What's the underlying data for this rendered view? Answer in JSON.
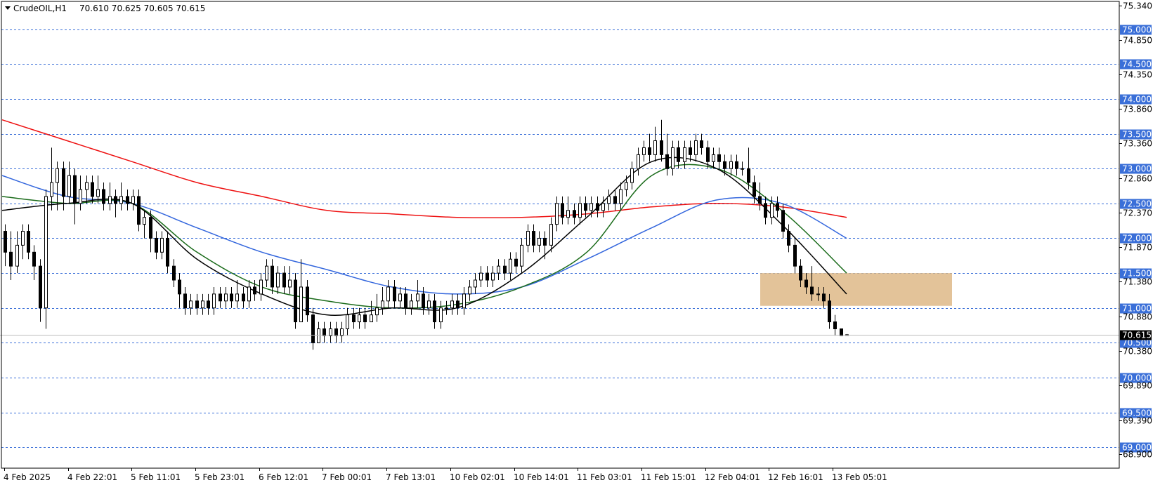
{
  "header": {
    "symbol": "CrudeOIL,H1",
    "ohlc": "70.610 70.625 70.605 70.615",
    "menu_icon": "triangle-down-icon"
  },
  "colors": {
    "background": "#ffffff",
    "grid": "#3a6fd8",
    "price_box": "#3a6fd8",
    "current_box": "#000000",
    "candle_outline": "#000000",
    "bull_body": "#ffffff",
    "bear_body": "#000000",
    "zone_fill": "#deb887"
  },
  "chart_data": {
    "type": "candlestick",
    "symbol": "CrudeOIL",
    "timeframe": "H1",
    "ylim": [
      68.7,
      75.4
    ],
    "price_axis_ticks": [
      "75.340",
      "74.850",
      "74.350",
      "73.860",
      "73.360",
      "72.860",
      "72.370",
      "71.870",
      "71.380",
      "70.880",
      "70.380",
      "69.890",
      "69.390",
      "68.900"
    ],
    "level_labels": [
      "75.000",
      "74.500",
      "74.000",
      "73.500",
      "73.000",
      "72.500",
      "72.000",
      "71.500",
      "71.000",
      "70.500",
      "70.000",
      "69.500",
      "69.000"
    ],
    "current_price": "70.615",
    "time_labels": [
      "4 Feb 2025",
      "4 Feb 22:01",
      "5 Feb 11:01",
      "5 Feb 23:01",
      "6 Feb 12:01",
      "7 Feb 00:01",
      "7 Feb 13:01",
      "10 Feb 02:01",
      "10 Feb 14:01",
      "11 Feb 03:01",
      "11 Feb 15:01",
      "12 Feb 04:01",
      "12 Feb 16:01",
      "13 Feb 05:01"
    ],
    "candles": [
      [
        72.1,
        71.8,
        72.2,
        71.6
      ],
      [
        71.8,
        71.6,
        72.1,
        71.4
      ],
      [
        71.6,
        71.9,
        72.1,
        71.5
      ],
      [
        71.9,
        72.1,
        72.2,
        71.7
      ],
      [
        72.1,
        71.8,
        72.2,
        71.7
      ],
      [
        71.8,
        71.6,
        71.9,
        71.4
      ],
      [
        71.6,
        71.0,
        71.7,
        70.8
      ],
      [
        71.0,
        72.6,
        72.7,
        70.7
      ],
      [
        72.6,
        72.8,
        73.3,
        72.4
      ],
      [
        72.8,
        73.0,
        73.1,
        72.4
      ],
      [
        73.0,
        72.6,
        73.1,
        72.4
      ],
      [
        72.6,
        72.9,
        73.1,
        72.5
      ],
      [
        72.9,
        72.5,
        73.0,
        72.2
      ],
      [
        72.5,
        72.7,
        72.9,
        72.4
      ],
      [
        72.7,
        72.8,
        72.9,
        72.5
      ],
      [
        72.8,
        72.6,
        72.9,
        72.5
      ],
      [
        72.6,
        72.7,
        72.9,
        72.5
      ],
      [
        72.7,
        72.5,
        72.8,
        72.4
      ],
      [
        72.5,
        72.6,
        72.8,
        72.4
      ],
      [
        72.6,
        72.5,
        72.7,
        72.3
      ],
      [
        72.5,
        72.6,
        72.8,
        72.4
      ],
      [
        72.6,
        72.5,
        72.7,
        72.4
      ],
      [
        72.5,
        72.6,
        72.7,
        72.4
      ],
      [
        72.6,
        72.2,
        72.7,
        72.1
      ],
      [
        72.2,
        72.3,
        72.4,
        72.0
      ],
      [
        72.3,
        72.0,
        72.4,
        71.8
      ],
      [
        72.0,
        71.8,
        72.1,
        71.7
      ],
      [
        71.8,
        72.0,
        72.1,
        71.7
      ],
      [
        72.0,
        71.6,
        72.1,
        71.5
      ],
      [
        71.6,
        71.4,
        71.7,
        71.3
      ],
      [
        71.4,
        71.2,
        71.5,
        71.0
      ],
      [
        71.2,
        71.0,
        71.3,
        70.9
      ],
      [
        71.0,
        71.1,
        71.2,
        70.9
      ],
      [
        71.1,
        71.0,
        71.2,
        70.9
      ],
      [
        71.0,
        71.1,
        71.2,
        70.9
      ],
      [
        71.1,
        71.0,
        71.2,
        70.9
      ],
      [
        71.0,
        71.2,
        71.3,
        70.9
      ],
      [
        71.2,
        71.1,
        71.3,
        71.0
      ],
      [
        71.1,
        71.2,
        71.3,
        71.0
      ],
      [
        71.2,
        71.1,
        71.3,
        71.0
      ],
      [
        71.1,
        71.2,
        71.4,
        71.0
      ],
      [
        71.2,
        71.1,
        71.3,
        71.0
      ],
      [
        71.1,
        71.3,
        71.4,
        71.0
      ],
      [
        71.3,
        71.2,
        71.4,
        71.1
      ],
      [
        71.2,
        71.4,
        71.5,
        71.1
      ],
      [
        71.4,
        71.6,
        71.7,
        71.3
      ],
      [
        71.6,
        71.3,
        71.7,
        71.2
      ],
      [
        71.3,
        71.5,
        71.6,
        71.2
      ],
      [
        71.5,
        71.3,
        71.6,
        71.2
      ],
      [
        71.3,
        71.4,
        71.6,
        71.2
      ],
      [
        71.4,
        70.8,
        71.5,
        70.7
      ],
      [
        70.8,
        71.3,
        71.7,
        70.8
      ],
      [
        71.3,
        70.9,
        71.4,
        70.8
      ],
      [
        70.9,
        70.5,
        71.0,
        70.4
      ],
      [
        70.5,
        70.7,
        70.8,
        70.5
      ],
      [
        70.7,
        70.6,
        70.8,
        70.5
      ],
      [
        70.6,
        70.7,
        70.8,
        70.5
      ],
      [
        70.7,
        70.6,
        70.8,
        70.5
      ],
      [
        70.6,
        70.7,
        70.8,
        70.5
      ],
      [
        70.7,
        70.9,
        71.0,
        70.6
      ],
      [
        70.9,
        70.8,
        71.0,
        70.7
      ],
      [
        70.8,
        70.9,
        71.0,
        70.7
      ],
      [
        70.9,
        70.8,
        71.0,
        70.7
      ],
      [
        70.8,
        70.9,
        71.1,
        70.8
      ],
      [
        70.9,
        71.0,
        71.2,
        70.8
      ],
      [
        71.0,
        71.1,
        71.3,
        70.9
      ],
      [
        71.1,
        71.3,
        71.4,
        71.0
      ],
      [
        71.3,
        71.1,
        71.4,
        71.0
      ],
      [
        71.1,
        71.2,
        71.3,
        71.0
      ],
      [
        71.2,
        71.0,
        71.3,
        70.9
      ],
      [
        71.0,
        71.1,
        71.2,
        70.9
      ],
      [
        71.1,
        71.2,
        71.4,
        71.0
      ],
      [
        71.2,
        71.0,
        71.3,
        70.9
      ],
      [
        71.0,
        71.1,
        71.2,
        70.9
      ],
      [
        71.1,
        70.8,
        71.2,
        70.7
      ],
      [
        70.8,
        71.0,
        71.1,
        70.7
      ],
      [
        71.0,
        71.0,
        71.1,
        70.9
      ],
      [
        71.0,
        71.1,
        71.2,
        70.9
      ],
      [
        71.1,
        71.0,
        71.2,
        70.9
      ],
      [
        71.0,
        71.2,
        71.3,
        70.9
      ],
      [
        71.2,
        71.3,
        71.4,
        71.1
      ],
      [
        71.3,
        71.4,
        71.5,
        71.2
      ],
      [
        71.4,
        71.5,
        71.6,
        71.3
      ],
      [
        71.5,
        71.4,
        71.6,
        71.3
      ],
      [
        71.4,
        71.5,
        71.6,
        71.3
      ],
      [
        71.5,
        71.6,
        71.7,
        71.4
      ],
      [
        71.6,
        71.5,
        71.7,
        71.4
      ],
      [
        71.5,
        71.7,
        71.8,
        71.4
      ],
      [
        71.7,
        71.6,
        71.8,
        71.5
      ],
      [
        71.6,
        71.9,
        72.0,
        71.5
      ],
      [
        71.9,
        72.1,
        72.2,
        71.8
      ],
      [
        72.1,
        71.9,
        72.2,
        71.8
      ],
      [
        71.9,
        72.0,
        72.1,
        71.8
      ],
      [
        72.0,
        71.9,
        72.1,
        71.7
      ],
      [
        71.9,
        72.2,
        72.3,
        71.8
      ],
      [
        72.2,
        72.5,
        72.6,
        72.1
      ],
      [
        72.5,
        72.3,
        72.6,
        72.2
      ],
      [
        72.3,
        72.4,
        72.6,
        72.2
      ],
      [
        72.4,
        72.3,
        72.5,
        72.2
      ],
      [
        72.3,
        72.5,
        72.6,
        72.2
      ],
      [
        72.5,
        72.4,
        72.6,
        72.3
      ],
      [
        72.4,
        72.5,
        72.6,
        72.3
      ],
      [
        72.5,
        72.4,
        72.6,
        72.3
      ],
      [
        72.4,
        72.5,
        72.6,
        72.3
      ],
      [
        72.5,
        72.6,
        72.7,
        72.4
      ],
      [
        72.6,
        72.5,
        72.7,
        72.4
      ],
      [
        72.5,
        72.7,
        72.8,
        72.4
      ],
      [
        72.7,
        72.8,
        72.9,
        72.6
      ],
      [
        72.8,
        73.0,
        73.1,
        72.7
      ],
      [
        73.0,
        73.2,
        73.3,
        72.9
      ],
      [
        73.2,
        73.3,
        73.4,
        73.1
      ],
      [
        73.3,
        73.2,
        73.5,
        73.1
      ],
      [
        73.2,
        73.4,
        73.6,
        73.1
      ],
      [
        73.4,
        73.2,
        73.7,
        73.1
      ],
      [
        73.2,
        73.0,
        73.5,
        72.9
      ],
      [
        73.0,
        73.3,
        73.4,
        72.9
      ],
      [
        73.3,
        73.1,
        73.4,
        73.0
      ],
      [
        73.1,
        73.3,
        73.4,
        73.0
      ],
      [
        73.3,
        73.2,
        73.4,
        73.1
      ],
      [
        73.2,
        73.4,
        73.5,
        73.1
      ],
      [
        73.4,
        73.3,
        73.5,
        73.2
      ],
      [
        73.3,
        73.1,
        73.4,
        73.0
      ],
      [
        73.1,
        73.2,
        73.3,
        73.0
      ],
      [
        73.2,
        73.1,
        73.3,
        73.0
      ],
      [
        73.1,
        73.0,
        73.2,
        72.9
      ],
      [
        73.0,
        73.1,
        73.2,
        72.9
      ],
      [
        73.1,
        73.0,
        73.2,
        72.9
      ],
      [
        73.0,
        73.0,
        73.1,
        72.9
      ],
      [
        73.0,
        72.8,
        73.3,
        72.7
      ],
      [
        72.8,
        72.6,
        72.9,
        72.5
      ],
      [
        72.6,
        72.5,
        72.8,
        72.4
      ],
      [
        72.5,
        72.3,
        72.6,
        72.2
      ],
      [
        72.3,
        72.5,
        72.6,
        72.2
      ],
      [
        72.5,
        72.4,
        72.6,
        72.3
      ],
      [
        72.4,
        72.1,
        72.5,
        72.0
      ],
      [
        72.1,
        71.9,
        72.2,
        71.8
      ],
      [
        71.9,
        71.6,
        72.0,
        71.5
      ],
      [
        71.6,
        71.4,
        71.7,
        71.3
      ],
      [
        71.4,
        71.3,
        71.5,
        71.2
      ],
      [
        71.3,
        71.2,
        71.6,
        71.1
      ],
      [
        71.2,
        71.2,
        71.3,
        71.1
      ],
      [
        71.2,
        71.1,
        71.3,
        71.0
      ],
      [
        71.1,
        70.8,
        71.2,
        70.7
      ],
      [
        70.8,
        70.7,
        70.9,
        70.6
      ],
      [
        70.7,
        70.6,
        70.7,
        70.6
      ],
      [
        70.61,
        70.615,
        70.625,
        70.605
      ]
    ],
    "moving_averages": [
      {
        "color": "#ee1111",
        "values": [
          73.7,
          73.4,
          73.1,
          72.8,
          72.6,
          72.4,
          72.35,
          72.3,
          72.3,
          72.35,
          72.45,
          72.5,
          72.45,
          72.3
        ]
      },
      {
        "color": "#3366dd",
        "values": [
          72.9,
          72.6,
          72.5,
          72.15,
          71.8,
          71.55,
          71.3,
          71.2,
          71.3,
          71.7,
          72.15,
          72.55,
          72.5,
          72.0
        ]
      },
      {
        "color": "#1a6b1a",
        "values": [
          72.6,
          72.5,
          72.5,
          71.8,
          71.3,
          71.1,
          71.0,
          71.05,
          71.3,
          71.8,
          72.9,
          73.0,
          72.4,
          71.5
        ]
      },
      {
        "color": "#000000",
        "values": [
          72.4,
          72.5,
          72.5,
          71.7,
          71.2,
          70.9,
          71.0,
          71.0,
          71.5,
          72.3,
          73.1,
          73.0,
          72.2,
          71.2
        ]
      }
    ],
    "zone": {
      "from": 71.03,
      "to": 71.5
    }
  }
}
